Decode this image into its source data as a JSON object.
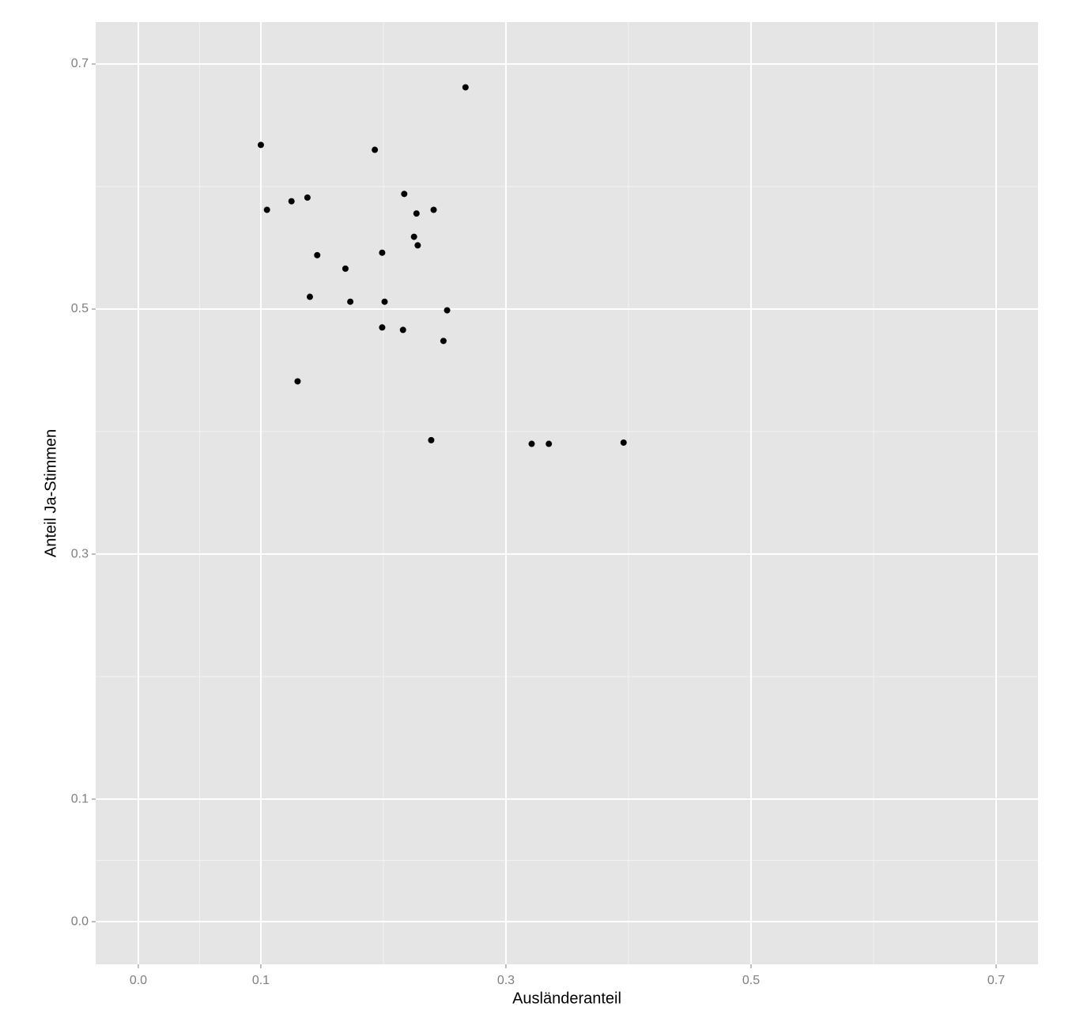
{
  "chart_data": {
    "type": "scatter",
    "x_label": "Ausländeranteil",
    "y_label": "Anteil Ja-Stimmen",
    "x": [
      0.267,
      0.1,
      0.193,
      0.105,
      0.125,
      0.138,
      0.217,
      0.241,
      0.227,
      0.225,
      0.228,
      0.146,
      0.199,
      0.169,
      0.14,
      0.173,
      0.201,
      0.252,
      0.199,
      0.216,
      0.249,
      0.13,
      0.239,
      0.321,
      0.335,
      0.396
    ],
    "values": [
      0.681,
      0.634,
      0.63,
      0.581,
      0.588,
      0.591,
      0.594,
      0.581,
      0.578,
      0.559,
      0.552,
      0.544,
      0.546,
      0.533,
      0.51,
      0.506,
      0.506,
      0.499,
      0.485,
      0.483,
      0.474,
      0.441,
      0.393,
      0.39,
      0.39,
      0.391
    ],
    "color": "#000000",
    "xlim": [
      -0.0348,
      0.7342
    ],
    "ylim": [
      -0.0348,
      0.7342
    ],
    "xticks": [
      {
        "value": 0,
        "label": "0.0"
      },
      0.1,
      0.3,
      0.5,
      0.7
    ],
    "yticks": [
      {
        "value": 0,
        "label": "0.0"
      },
      0.1,
      0.3,
      0.5,
      0.7
    ],
    "x_minor_grid": [
      0.05,
      0.2,
      0.4,
      0.6
    ],
    "y_minor_grid": [
      0.05,
      0.2,
      0.4,
      0.6
    ],
    "grid": true,
    "panel_color": "#e5e5e5"
  }
}
